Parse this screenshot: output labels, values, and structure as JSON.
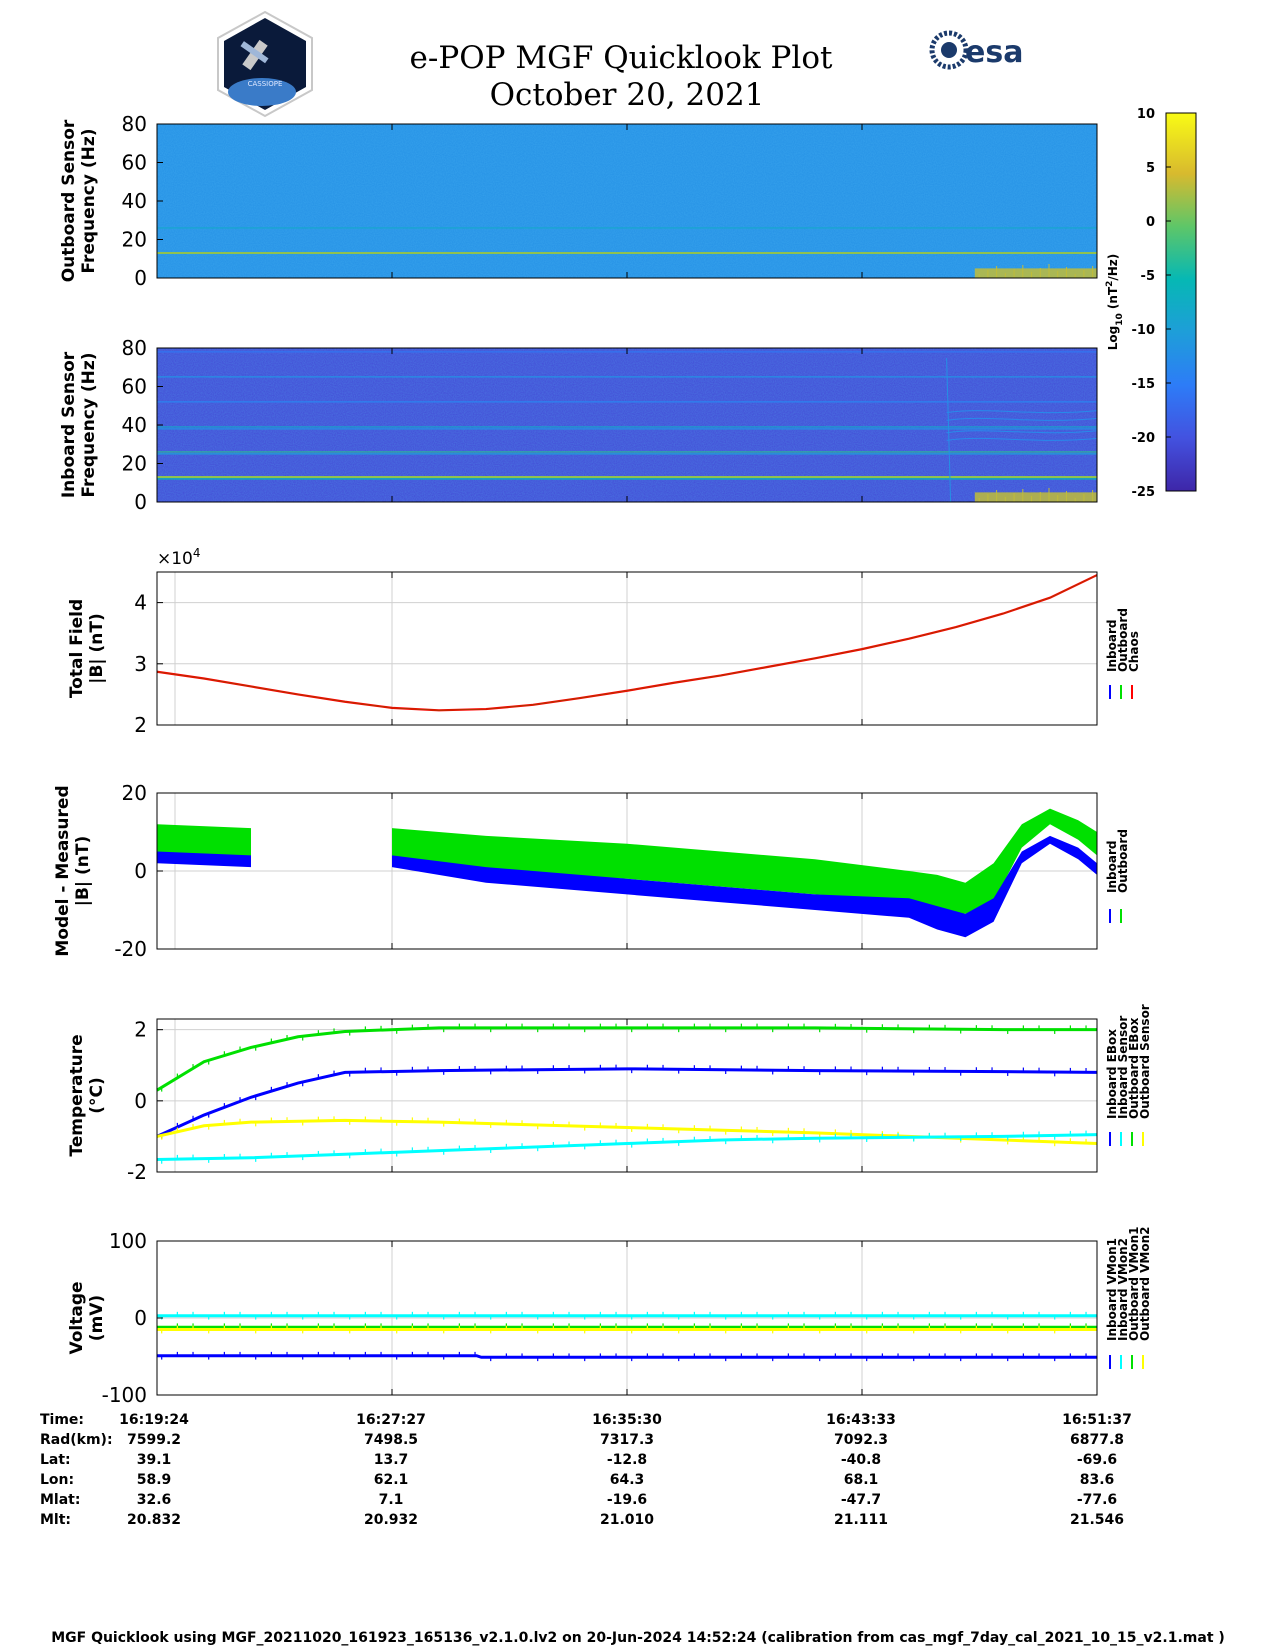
{
  "page": {
    "title": "e-POP MGF Quicklook Plot",
    "date": "October 20, 2021",
    "footer": "MGF Quicklook using MGF_20211020_161923_165136_v2.1.0.lv2 on 20-Jun-2024 14:52:24 (calibration from cas_mgf_7day_cal_2021_10_15_v2.1.mat )",
    "logos": {
      "left_text": "CASSIOPE",
      "right_text": "esa"
    }
  },
  "colors": {
    "blue": "#0000ff",
    "green": "#00e000",
    "red": "#ff0000",
    "yellow": "#ffff00",
    "cyan": "#00ffff",
    "grid": "#d0d0d0"
  },
  "colorbar": {
    "label": "Log10 (nT^2/Hz)",
    "label_main": "Log",
    "label_sub": "10",
    "label_rest": " (nT",
    "label_sup": "2",
    "label_end": "/Hz)",
    "ticks": [
      "10",
      "5",
      "0",
      "-5",
      "-10",
      "-15",
      "-20",
      "-25"
    ],
    "range": [
      -25,
      10
    ]
  },
  "ephemeris": {
    "rows": [
      {
        "label": "Time:",
        "values": [
          "16:19:24",
          "16:27:27",
          "16:35:30",
          "16:43:33",
          "16:51:37"
        ]
      },
      {
        "label": "Rad(km):",
        "values": [
          "7599.2",
          "7498.5",
          "7317.3",
          "7092.3",
          "6877.8"
        ]
      },
      {
        "label": "Lat:",
        "values": [
          "39.1",
          "13.7",
          "-12.8",
          "-40.8",
          "-69.6"
        ]
      },
      {
        "label": "Lon:",
        "values": [
          "58.9",
          "62.1",
          "64.3",
          "68.1",
          "83.6"
        ]
      },
      {
        "label": "Mlat:",
        "values": [
          "32.6",
          "7.1",
          "-19.6",
          "-47.7",
          "-77.6"
        ]
      },
      {
        "label": "Mlt:",
        "values": [
          "20.832",
          "20.932",
          "21.010",
          "21.111",
          "21.546"
        ]
      }
    ]
  },
  "chart_data": [
    {
      "type": "heatmap",
      "ylabel_line1": "Outboard Sensor",
      "ylabel_line2": "Frequency (Hz)",
      "ylim": [
        0,
        80
      ],
      "yticks": [
        "80",
        "60",
        "40",
        "20",
        "0"
      ],
      "background_level": -12,
      "spectral_lines_hz": [
        {
          "f": 13,
          "level": 2
        },
        {
          "f": 26,
          "level": -8
        }
      ],
      "low_freq_activity": {
        "x_start": 0.87,
        "x_end": 1.0,
        "f_max": 5,
        "level": 4
      }
    },
    {
      "type": "heatmap",
      "ylabel_line1": "Inboard Sensor",
      "ylabel_line2": "Frequency (Hz)",
      "ylim": [
        0,
        80
      ],
      "yticks": [
        "80",
        "60",
        "40",
        "20",
        "0"
      ],
      "background_level": -21,
      "spectral_lines_hz": [
        {
          "f": 13,
          "level": 2
        },
        {
          "f": 12,
          "level": -5
        },
        {
          "f": 26,
          "level": -3
        },
        {
          "f": 25,
          "level": -10
        },
        {
          "f": 38,
          "level": -12
        },
        {
          "f": 39,
          "level": -8
        },
        {
          "f": 52,
          "level": -14
        },
        {
          "f": 65,
          "level": -12
        },
        {
          "f": 78,
          "level": -16
        }
      ],
      "low_freq_activity": {
        "x_start": 0.87,
        "x_end": 1.0,
        "f_max": 5,
        "level": 4
      }
    },
    {
      "type": "line",
      "ylabel_line1": "Total Field",
      "ylabel_line2": "|B| (nT)",
      "multiplier": "×10",
      "multiplier_exp": "4",
      "ylim": [
        2,
        4.5
      ],
      "yticks": [
        "4",
        "3",
        "2"
      ],
      "legend": [
        "Inboard",
        "Outboard",
        "Chaos"
      ],
      "legend_colors": [
        "#0000ff",
        "#00e000",
        "#ff0000"
      ],
      "series": [
        {
          "name": "Chaos",
          "x": [
            0,
            0.05,
            0.1,
            0.15,
            0.2,
            0.25,
            0.3,
            0.35,
            0.4,
            0.45,
            0.5,
            0.55,
            0.6,
            0.65,
            0.7,
            0.75,
            0.8,
            0.85,
            0.9,
            0.95,
            1.0
          ],
          "values": [
            2.87,
            2.76,
            2.63,
            2.5,
            2.38,
            2.28,
            2.24,
            2.26,
            2.33,
            2.44,
            2.56,
            2.69,
            2.81,
            2.95,
            3.09,
            3.24,
            3.41,
            3.6,
            3.82,
            4.08,
            4.45
          ]
        }
      ]
    },
    {
      "type": "area",
      "ylabel_line1": "Model - Measured",
      "ylabel_line2": "|B| (nT)",
      "ylim": [
        -20,
        20
      ],
      "yticks": [
        "20",
        "0",
        "-20"
      ],
      "legend": [
        "Inboard",
        "Outboard"
      ],
      "legend_colors": [
        "#0000ff",
        "#00e000"
      ],
      "gap": [
        0.1,
        0.25
      ],
      "series": [
        {
          "name": "Outboard",
          "x": [
            0,
            0.1,
            0.25,
            0.35,
            0.5,
            0.6,
            0.7,
            0.8,
            0.83,
            0.86,
            0.89,
            0.92,
            0.95,
            0.98,
            1.0
          ],
          "lo": [
            3,
            2,
            2,
            0,
            -2,
            -4,
            -6,
            -8,
            -10,
            -11,
            -8,
            6,
            12,
            8,
            4
          ],
          "hi": [
            12,
            11,
            11,
            9,
            7,
            5,
            3,
            0,
            -1,
            -3,
            2,
            12,
            16,
            13,
            10
          ]
        },
        {
          "name": "Inboard",
          "x": [
            0,
            0.1,
            0.25,
            0.35,
            0.5,
            0.6,
            0.7,
            0.8,
            0.83,
            0.86,
            0.89,
            0.92,
            0.95,
            0.98,
            1.0
          ],
          "lo": [
            2,
            1,
            1,
            -3,
            -6,
            -8,
            -10,
            -12,
            -15,
            -17,
            -13,
            2,
            7,
            3,
            -1
          ],
          "hi": [
            5,
            4,
            4,
            1,
            -2,
            -4,
            -6,
            -7,
            -9,
            -11,
            -7,
            5,
            9,
            6,
            2
          ]
        }
      ]
    },
    {
      "type": "line",
      "ylabel_line1": "Temperature",
      "ylabel_line2": "(°C)",
      "ylim": [
        -2,
        2.3
      ],
      "yticks": [
        "2",
        "0",
        "-2"
      ],
      "legend": [
        "Inboard EBox",
        "Inboard Sensor",
        "Outboard EBox",
        "Outboard Sensor"
      ],
      "legend_colors": [
        "#0000ff",
        "#00ffff",
        "#00e000",
        "#ffff00"
      ],
      "series": [
        {
          "name": "Outboard EBox",
          "x": [
            0,
            0.05,
            0.1,
            0.15,
            0.2,
            0.3,
            0.5,
            0.7,
            0.9,
            1.0
          ],
          "values": [
            0.3,
            1.1,
            1.5,
            1.8,
            1.95,
            2.05,
            2.05,
            2.05,
            2.0,
            2.0
          ]
        },
        {
          "name": "Inboard EBox",
          "x": [
            0,
            0.05,
            0.1,
            0.15,
            0.2,
            0.3,
            0.5,
            0.7,
            0.9,
            1.0
          ],
          "values": [
            -1.0,
            -0.4,
            0.1,
            0.5,
            0.8,
            0.85,
            0.9,
            0.85,
            0.82,
            0.8
          ]
        },
        {
          "name": "Outboard Sensor",
          "x": [
            0,
            0.05,
            0.1,
            0.2,
            0.3,
            0.5,
            0.7,
            0.9,
            1.0
          ],
          "values": [
            -1.0,
            -0.7,
            -0.6,
            -0.55,
            -0.6,
            -0.75,
            -0.9,
            -1.1,
            -1.2
          ]
        },
        {
          "name": "Inboard Sensor",
          "x": [
            0,
            0.1,
            0.2,
            0.3,
            0.5,
            0.6,
            0.7,
            0.9,
            1.0
          ],
          "values": [
            -1.65,
            -1.6,
            -1.5,
            -1.4,
            -1.2,
            -1.1,
            -1.05,
            -1.0,
            -0.95
          ]
        }
      ]
    },
    {
      "type": "line",
      "ylabel_line1": "Voltage",
      "ylabel_line2": "(mV)",
      "ylim": [
        -100,
        100
      ],
      "yticks": [
        "100",
        "0",
        "-100"
      ],
      "legend": [
        "Inboard VMon1",
        "Inboard VMon2",
        "Outboard VMon1",
        "Outboard VMon2"
      ],
      "legend_colors": [
        "#0000ff",
        "#00ffff",
        "#00e000",
        "#ffff00"
      ],
      "series": [
        {
          "name": "Inboard VMon1",
          "x": [
            0,
            0.34,
            0.345,
            1.0
          ],
          "values": [
            -49,
            -49,
            -51,
            -51
          ]
        },
        {
          "name": "Inboard VMon2",
          "x": [
            0,
            1.0
          ],
          "values": [
            3,
            3
          ]
        },
        {
          "name": "Outboard VMon1",
          "x": [
            0,
            1.0
          ],
          "values": [
            -12,
            -12
          ]
        },
        {
          "name": "Outboard VMon2",
          "x": [
            0,
            1.0
          ],
          "values": [
            -15,
            -15
          ]
        }
      ]
    }
  ]
}
